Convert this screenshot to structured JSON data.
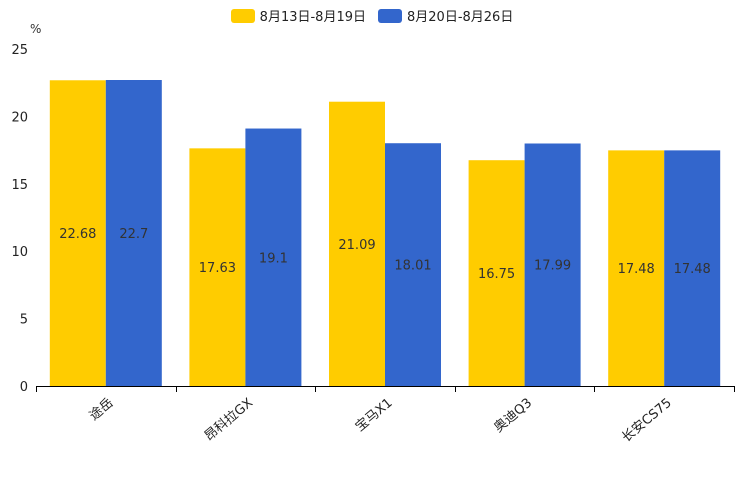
{
  "chart_data": {
    "type": "bar",
    "unit": "%",
    "categories": [
      "途岳",
      "昂科拉GX",
      "宝马X1",
      "奥迪Q3",
      "长安CS75"
    ],
    "series": [
      {
        "name": "8月13日-8月19日",
        "color": "#FFCC00",
        "values": [
          22.68,
          17.63,
          21.09,
          16.75,
          17.48
        ],
        "labels": [
          "22.68",
          "17.63",
          "21.09",
          "16.75",
          "17.48"
        ]
      },
      {
        "name": "8月20日-8月26日",
        "color": "#3366CC",
        "values": [
          22.7,
          19.1,
          18.01,
          17.99,
          17.48
        ],
        "labels": [
          "22.7",
          "19.1",
          "18.01",
          "17.99",
          "17.48"
        ]
      }
    ],
    "yticks": [
      "0",
      "5",
      "10",
      "15",
      "20",
      "25"
    ],
    "ylim": [
      0,
      25
    ],
    "legend_position": "top-center"
  }
}
